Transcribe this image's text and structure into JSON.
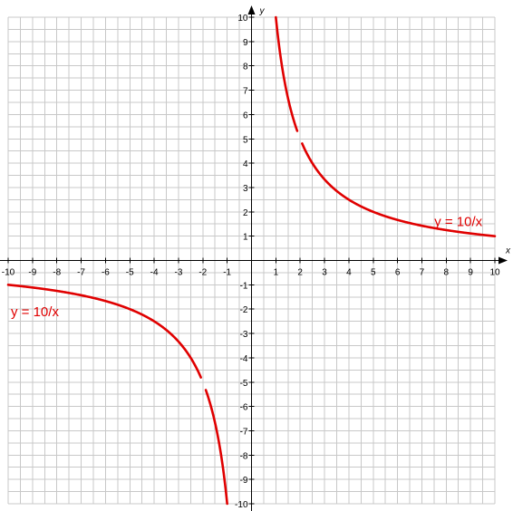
{
  "chart_data": {
    "type": "line",
    "title": "",
    "xlabel": "x",
    "ylabel": "y",
    "xlim": [
      -10,
      10
    ],
    "ylim": [
      -10,
      10
    ],
    "grid": true,
    "grid_step": 0.5,
    "x_ticks": [
      "-10",
      "-9",
      "-8",
      "-7",
      "-6",
      "-5",
      "-4",
      "-3",
      "-2",
      "-1",
      "1",
      "2",
      "3",
      "4",
      "5",
      "6",
      "7",
      "8",
      "9",
      "10"
    ],
    "y_ticks": [
      "10",
      "9",
      "8",
      "7",
      "6",
      "5",
      "4",
      "3",
      "2",
      "1",
      "-1",
      "-2",
      "-3",
      "-4",
      "-5",
      "-6",
      "-7",
      "-8",
      "-9",
      "-10"
    ],
    "series": [
      {
        "equation": "10/x",
        "branch": "positive",
        "x_range": [
          1,
          10
        ],
        "gaps": [
          [
            1.88,
            2.08
          ]
        ],
        "color": "#e00000"
      },
      {
        "equation": "10/x",
        "branch": "negative",
        "x_range": [
          -10,
          -1
        ],
        "gaps": [
          [
            -2.08,
            -1.88
          ]
        ],
        "color": "#e00000"
      }
    ],
    "annotations": [
      {
        "text": "y = 10/x",
        "x": 7.4,
        "y": 1.6
      },
      {
        "text": "y = 10/x",
        "x": -10,
        "y": -2.1
      }
    ],
    "grid_color": "#c8c8c8",
    "axis_color": "#000000",
    "curve_color": "#e00000"
  }
}
